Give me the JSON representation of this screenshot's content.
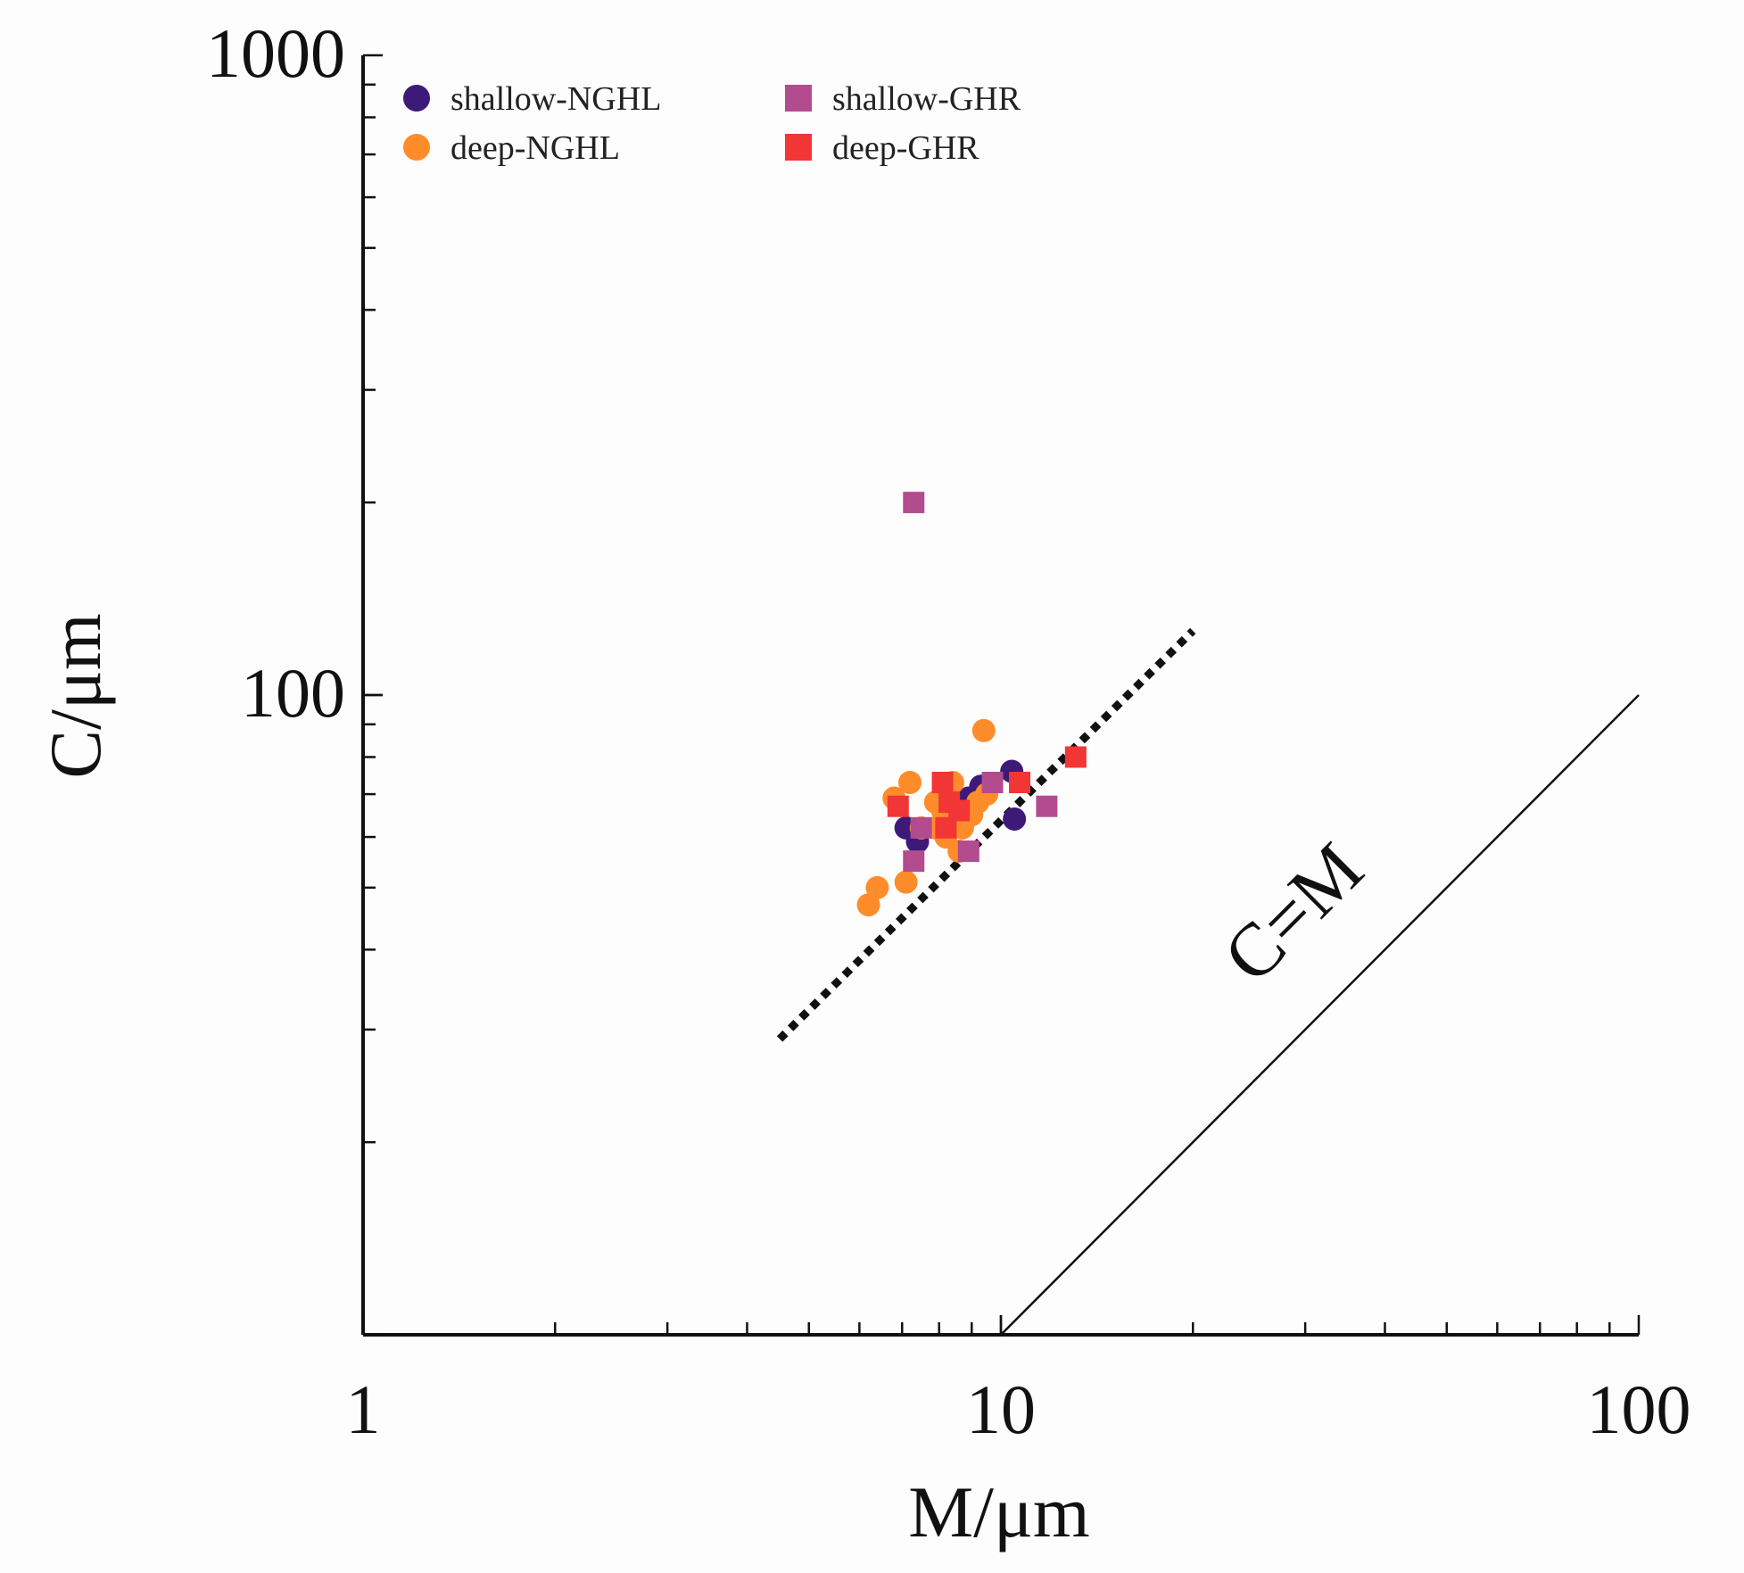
{
  "chart_data": {
    "type": "scatter",
    "title": "",
    "xlabel": "M/μm",
    "ylabel": "C/μm",
    "xscale": "log",
    "yscale": "log",
    "xlim": [
      1,
      100
    ],
    "ylim": [
      10,
      1000
    ],
    "x_ticks": [
      {
        "value": 1,
        "label": "1"
      },
      {
        "value": 10,
        "label": "10"
      },
      {
        "value": 100,
        "label": "100"
      }
    ],
    "y_ticks": [
      {
        "value": 100,
        "label": "100"
      },
      {
        "value": 1000,
        "label": "1000"
      }
    ],
    "grid": false,
    "legend_position": "top-left",
    "series": [
      {
        "name": "shallow-NGHL",
        "marker": "circle",
        "color": "#3d1a78",
        "points": [
          {
            "x": 7.1,
            "y": 62
          },
          {
            "x": 7.4,
            "y": 59
          },
          {
            "x": 8.6,
            "y": 66
          },
          {
            "x": 9.3,
            "y": 72
          },
          {
            "x": 10.4,
            "y": 76
          },
          {
            "x": 10.5,
            "y": 64
          },
          {
            "x": 8.9,
            "y": 69
          }
        ]
      },
      {
        "name": "deep-NGHL",
        "marker": "circle",
        "color": "#ff8c2a",
        "points": [
          {
            "x": 7.2,
            "y": 73
          },
          {
            "x": 6.8,
            "y": 69
          },
          {
            "x": 7.5,
            "y": 62
          },
          {
            "x": 7.9,
            "y": 68
          },
          {
            "x": 8.4,
            "y": 73
          },
          {
            "x": 8.1,
            "y": 66
          },
          {
            "x": 8.7,
            "y": 62
          },
          {
            "x": 9.0,
            "y": 65
          },
          {
            "x": 9.2,
            "y": 68
          },
          {
            "x": 9.4,
            "y": 88
          },
          {
            "x": 8.6,
            "y": 57
          },
          {
            "x": 7.9,
            "y": 62
          },
          {
            "x": 6.4,
            "y": 50
          },
          {
            "x": 6.2,
            "y": 47
          },
          {
            "x": 7.1,
            "y": 51
          },
          {
            "x": 8.2,
            "y": 60
          },
          {
            "x": 8.8,
            "y": 64
          },
          {
            "x": 9.5,
            "y": 70
          }
        ]
      },
      {
        "name": "shallow-GHR",
        "marker": "square",
        "color": "#b34c8e",
        "points": [
          {
            "x": 7.3,
            "y": 200
          },
          {
            "x": 7.3,
            "y": 55
          },
          {
            "x": 8.9,
            "y": 57
          },
          {
            "x": 9.7,
            "y": 73
          },
          {
            "x": 11.8,
            "y": 67
          },
          {
            "x": 7.5,
            "y": 62
          }
        ]
      },
      {
        "name": "deep-GHR",
        "marker": "square",
        "color": "#f23535",
        "points": [
          {
            "x": 6.9,
            "y": 67
          },
          {
            "x": 8.1,
            "y": 73
          },
          {
            "x": 8.3,
            "y": 68
          },
          {
            "x": 8.2,
            "y": 62
          },
          {
            "x": 10.7,
            "y": 73
          },
          {
            "x": 13.1,
            "y": 80
          },
          {
            "x": 8.6,
            "y": 66
          }
        ]
      }
    ],
    "trend_line": {
      "style": "dotted",
      "color": "#111111",
      "x": [
        4.5,
        20
      ],
      "y": [
        29,
        126
      ]
    },
    "reference_line": {
      "label": "C=M",
      "color": "#111111",
      "x": [
        10,
        100
      ],
      "y": [
        10,
        100
      ]
    }
  }
}
